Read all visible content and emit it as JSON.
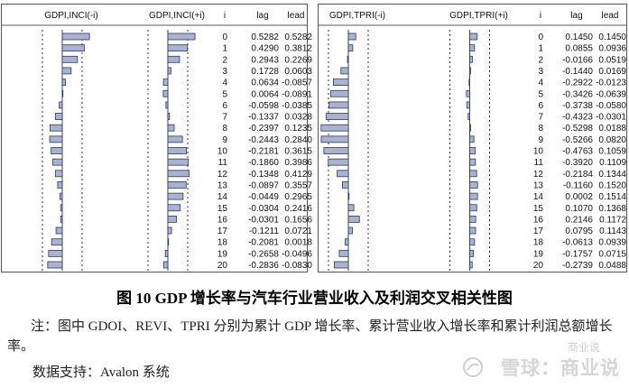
{
  "chart_data": [
    {
      "type": "table",
      "columns": [
        "GDPI,INCI(-i)",
        "GDPI,INCI(+i)",
        "i",
        "lag",
        "lead"
      ],
      "i": [
        0,
        1,
        2,
        3,
        4,
        5,
        6,
        7,
        8,
        9,
        10,
        11,
        12,
        13,
        14,
        15,
        16,
        17,
        18,
        19,
        20
      ],
      "lag": [
        "0.5282",
        "0.4290",
        "0.2943",
        "0.1728",
        "0.0634",
        "0.0064",
        "-0.0598",
        "-0.1337",
        "-0.2397",
        "-0.2443",
        "-0.2181",
        "-0.1860",
        "-0.1348",
        "-0.0897",
        "-0.0449",
        "-0.0304",
        "-0.0301",
        "-0.1211",
        "-0.2081",
        "-0.2658",
        "-0.2836"
      ],
      "lead": [
        "0.5282",
        "0.3812",
        "0.2269",
        "0.0603",
        "-0.0857",
        "-0.0891",
        "-0.0385",
        "0.0328",
        "0.1235",
        "0.2840",
        "0.3615",
        "0.3986",
        "0.4129",
        "0.3557",
        "0.2965",
        "0.2416",
        "0.1656",
        "0.0721",
        "0.0018",
        "-0.0496",
        "-0.0830"
      ]
    },
    {
      "type": "table",
      "columns": [
        "GDPI,TPRI(-i)",
        "GDPI,TPRI(+i)",
        "i",
        "lag",
        "lead"
      ],
      "i": [
        0,
        1,
        2,
        3,
        4,
        5,
        6,
        7,
        8,
        9,
        10,
        11,
        12,
        13,
        14,
        15,
        16,
        17,
        18,
        19,
        20
      ],
      "lag": [
        "0.1450",
        "0.0855",
        "-0.0166",
        "-0.1440",
        "-0.2922",
        "-0.3426",
        "-0.3738",
        "-0.4323",
        "-0.5298",
        "-0.5266",
        "-0.4763",
        "-0.3920",
        "-0.2184",
        "-0.1160",
        "0.0002",
        "0.1070",
        "0.2146",
        "0.0795",
        "-0.0613",
        "-0.1757",
        "-0.2739"
      ],
      "lead": [
        "0.1450",
        "0.0936",
        "0.0519",
        "0.0169",
        "-0.0123",
        "-0.0639",
        "-0.0580",
        "-0.0301",
        "0.0188",
        "0.0820",
        "0.1059",
        "0.1109",
        "0.1344",
        "0.1520",
        "0.1514",
        "0.1368",
        "0.1172",
        "0.1143",
        "0.0939",
        "0.0715",
        "0.0488"
      ]
    }
  ],
  "caption": "图 10 GDP 增长率与汽车行业营业收入及利润交叉相关性图",
  "note": "注：图中 GDOI、REVI、TPRI 分别为累计 GDP 增长率、累计营业收入增长率和累计利润总额增长率。",
  "source": "数据支持：Avalon 系统",
  "watermark": "雪球：商业说",
  "watermark_small": "商业说",
  "colors": {
    "bar_fill": "#a9b3cf",
    "bar_stroke": "#2c3a6a",
    "band": "#333333",
    "border": "#555555"
  }
}
